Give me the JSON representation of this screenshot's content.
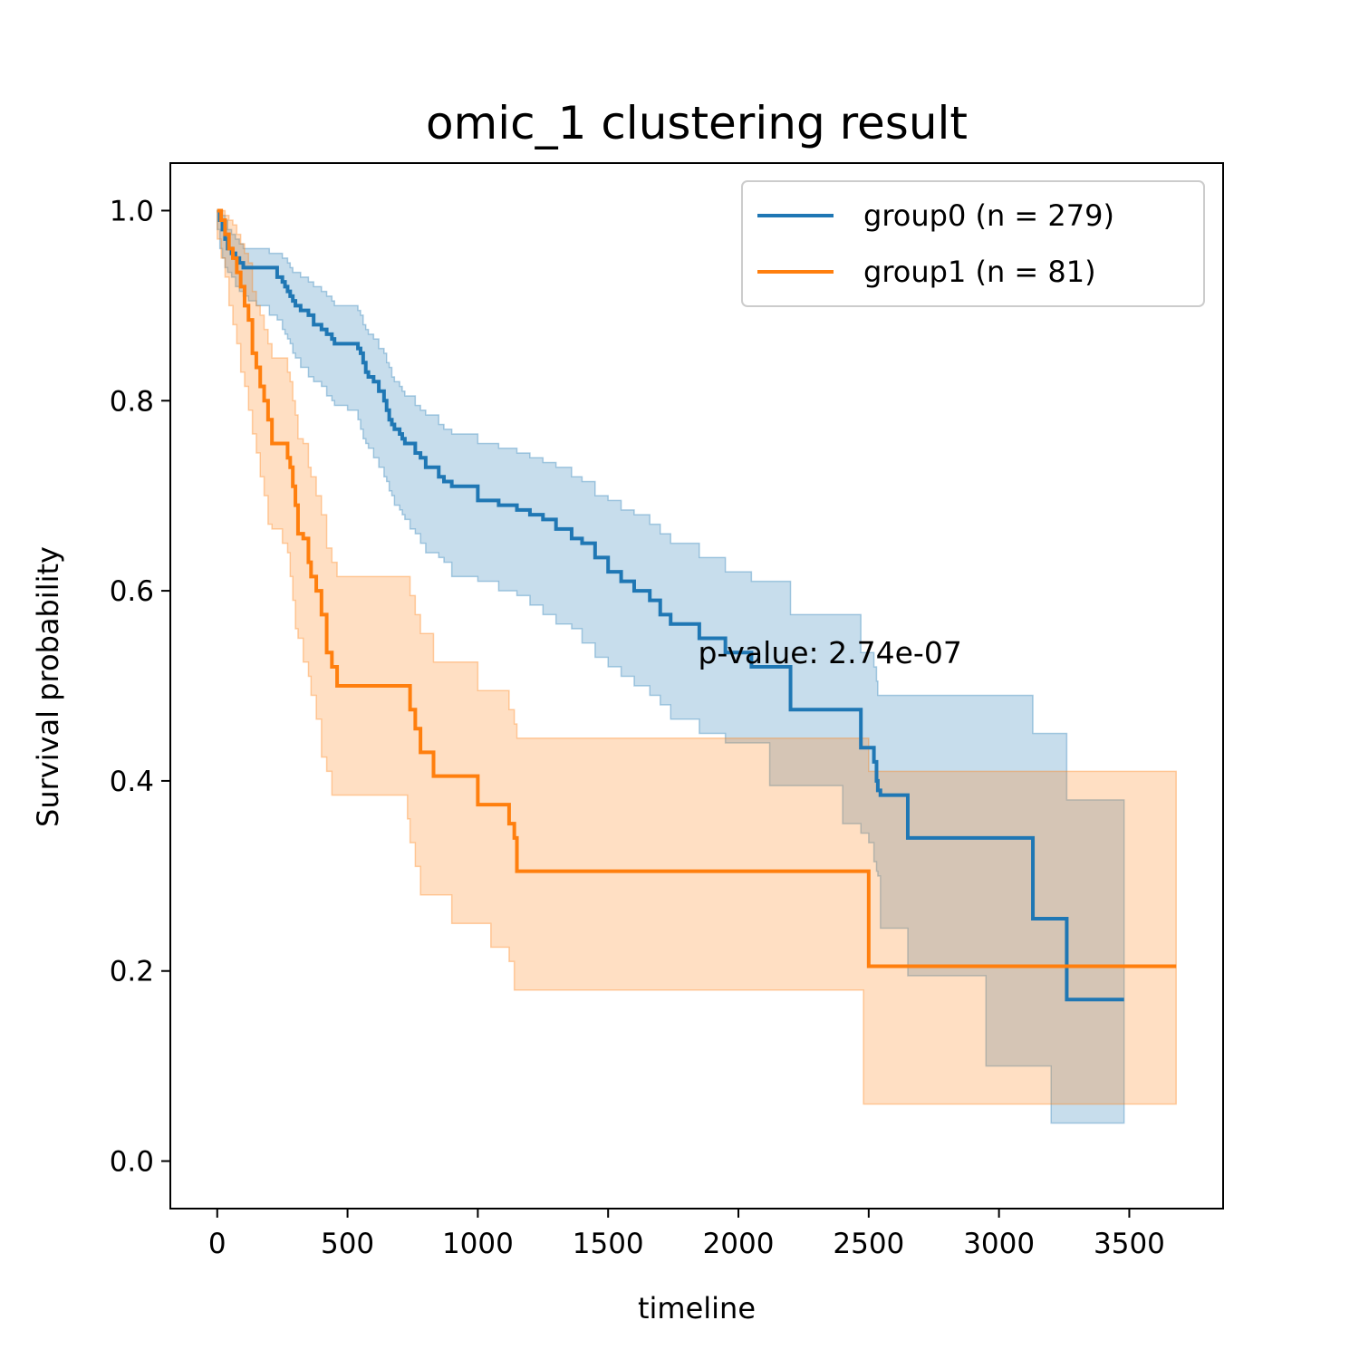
{
  "chart_data": {
    "type": "line",
    "title": "omic_1 clustering result",
    "xlabel": "timeline",
    "ylabel": "Survival probability",
    "xlim": [
      -180,
      3860
    ],
    "ylim": [
      -0.05,
      1.05
    ],
    "xticks": [
      0,
      500,
      1000,
      1500,
      2000,
      2500,
      3000,
      3500
    ],
    "yticks": [
      0.0,
      0.2,
      0.4,
      0.6,
      0.8,
      1.0
    ],
    "xtick_labels": [
      "0",
      "500",
      "1000",
      "1500",
      "2000",
      "2500",
      "3000",
      "3500"
    ],
    "ytick_labels": [
      "0.0",
      "0.2",
      "0.4",
      "0.6",
      "0.8",
      "1.0"
    ],
    "grid": false,
    "legend_position": "top-right",
    "annotation": {
      "text": "p-value: 2.74e-07",
      "x": 1845,
      "y": 0.52
    },
    "series": [
      {
        "name": "group0 (n = 279)",
        "color": "#1f77b4",
        "fill_color": "#1f77b4",
        "x": [
          0,
          10,
          20,
          30,
          40,
          55,
          70,
          85,
          100,
          120,
          150,
          200,
          230,
          250,
          260,
          270,
          280,
          290,
          300,
          320,
          350,
          370,
          400,
          420,
          440,
          450,
          500,
          540,
          550,
          560,
          570,
          580,
          600,
          620,
          640,
          650,
          660,
          670,
          680,
          700,
          710,
          720,
          740,
          760,
          780,
          800,
          850,
          870,
          900,
          1000,
          1080,
          1150,
          1200,
          1250,
          1300,
          1360,
          1400,
          1450,
          1500,
          1550,
          1600,
          1660,
          1700,
          1740,
          1850,
          1950,
          2050,
          2120,
          2200,
          2300,
          2400,
          2470,
          2500,
          2520,
          2530,
          2535,
          2545,
          2650,
          2800,
          2950,
          3130,
          3200,
          3260,
          3350,
          3480
        ],
        "y": [
          1.0,
          0.99,
          0.98,
          0.97,
          0.96,
          0.955,
          0.95,
          0.945,
          0.94,
          0.94,
          0.94,
          0.94,
          0.93,
          0.925,
          0.92,
          0.915,
          0.91,
          0.905,
          0.9,
          0.895,
          0.89,
          0.88,
          0.875,
          0.87,
          0.865,
          0.86,
          0.86,
          0.855,
          0.85,
          0.84,
          0.83,
          0.825,
          0.82,
          0.81,
          0.8,
          0.79,
          0.78,
          0.775,
          0.77,
          0.765,
          0.76,
          0.755,
          0.755,
          0.745,
          0.74,
          0.73,
          0.72,
          0.715,
          0.71,
          0.695,
          0.69,
          0.685,
          0.68,
          0.675,
          0.665,
          0.655,
          0.65,
          0.635,
          0.62,
          0.61,
          0.6,
          0.59,
          0.575,
          0.565,
          0.55,
          0.535,
          0.52,
          0.52,
          0.475,
          0.475,
          0.475,
          0.435,
          0.435,
          0.42,
          0.4,
          0.39,
          0.385,
          0.34,
          0.34,
          0.34,
          0.255,
          0.255,
          0.17,
          0.17,
          0.17
        ],
        "lower": [
          1.0,
          0.98,
          0.96,
          0.95,
          0.94,
          0.935,
          0.93,
          0.92,
          0.915,
          0.91,
          0.905,
          0.9,
          0.89,
          0.885,
          0.875,
          0.87,
          0.865,
          0.86,
          0.85,
          0.845,
          0.835,
          0.825,
          0.82,
          0.815,
          0.805,
          0.8,
          0.795,
          0.79,
          0.78,
          0.77,
          0.76,
          0.755,
          0.75,
          0.74,
          0.73,
          0.72,
          0.715,
          0.705,
          0.7,
          0.69,
          0.685,
          0.68,
          0.675,
          0.665,
          0.66,
          0.65,
          0.64,
          0.635,
          0.63,
          0.615,
          0.61,
          0.6,
          0.595,
          0.585,
          0.575,
          0.565,
          0.56,
          0.545,
          0.53,
          0.52,
          0.51,
          0.5,
          0.49,
          0.48,
          0.465,
          0.45,
          0.44,
          0.44,
          0.395,
          0.395,
          0.395,
          0.355,
          0.345,
          0.335,
          0.315,
          0.305,
          0.3,
          0.245,
          0.195,
          0.195,
          0.1,
          0.1,
          0.04,
          0.04,
          0.04
        ],
        "upper": [
          1.0,
          1.0,
          0.995,
          0.99,
          0.98,
          0.975,
          0.97,
          0.965,
          0.96,
          0.96,
          0.96,
          0.955,
          0.955,
          0.95,
          0.95,
          0.945,
          0.94,
          0.935,
          0.935,
          0.93,
          0.925,
          0.92,
          0.915,
          0.91,
          0.905,
          0.9,
          0.9,
          0.895,
          0.89,
          0.88,
          0.875,
          0.87,
          0.865,
          0.855,
          0.85,
          0.84,
          0.835,
          0.825,
          0.82,
          0.815,
          0.81,
          0.805,
          0.805,
          0.795,
          0.79,
          0.785,
          0.775,
          0.77,
          0.765,
          0.755,
          0.75,
          0.745,
          0.74,
          0.735,
          0.73,
          0.72,
          0.715,
          0.7,
          0.695,
          0.685,
          0.68,
          0.67,
          0.66,
          0.65,
          0.635,
          0.62,
          0.61,
          0.61,
          0.575,
          0.575,
          0.575,
          0.535,
          0.535,
          0.52,
          0.505,
          0.49,
          0.49,
          0.49,
          0.49,
          0.49,
          0.45,
          0.45,
          0.38,
          0.38,
          0.38
        ]
      },
      {
        "name": "group1 (n = 81)",
        "color": "#ff7f0e",
        "fill_color": "#ff7f0e",
        "x": [
          0,
          15,
          30,
          45,
          60,
          75,
          90,
          105,
          120,
          135,
          150,
          165,
          180,
          195,
          210,
          250,
          270,
          280,
          290,
          300,
          310,
          330,
          350,
          360,
          380,
          400,
          420,
          440,
          460,
          730,
          740,
          760,
          780,
          830,
          900,
          1000,
          1050,
          1120,
          1140,
          1150,
          1400,
          2000,
          2480,
          2500,
          3000,
          3680
        ],
        "y": [
          1.0,
          0.99,
          0.975,
          0.96,
          0.95,
          0.935,
          0.92,
          0.9,
          0.885,
          0.85,
          0.835,
          0.815,
          0.8,
          0.78,
          0.755,
          0.755,
          0.74,
          0.73,
          0.71,
          0.69,
          0.66,
          0.655,
          0.63,
          0.615,
          0.6,
          0.575,
          0.535,
          0.52,
          0.5,
          0.5,
          0.475,
          0.455,
          0.43,
          0.405,
          0.405,
          0.375,
          0.375,
          0.355,
          0.34,
          0.305,
          0.305,
          0.305,
          0.305,
          0.205,
          0.205,
          0.205
        ],
        "lower": [
          1.0,
          0.97,
          0.95,
          0.93,
          0.9,
          0.88,
          0.86,
          0.83,
          0.815,
          0.79,
          0.765,
          0.745,
          0.72,
          0.7,
          0.67,
          0.665,
          0.65,
          0.64,
          0.615,
          0.59,
          0.56,
          0.55,
          0.525,
          0.51,
          0.49,
          0.465,
          0.425,
          0.41,
          0.385,
          0.385,
          0.36,
          0.335,
          0.31,
          0.28,
          0.28,
          0.25,
          0.25,
          0.225,
          0.21,
          0.18,
          0.18,
          0.18,
          0.18,
          0.06,
          0.06,
          0.06
        ],
        "upper": [
          1.0,
          1.0,
          0.995,
          0.99,
          0.985,
          0.975,
          0.965,
          0.955,
          0.945,
          0.915,
          0.9,
          0.89,
          0.875,
          0.86,
          0.845,
          0.845,
          0.83,
          0.82,
          0.8,
          0.785,
          0.76,
          0.755,
          0.73,
          0.72,
          0.7,
          0.68,
          0.645,
          0.63,
          0.615,
          0.615,
          0.595,
          0.575,
          0.555,
          0.525,
          0.525,
          0.495,
          0.495,
          0.475,
          0.46,
          0.445,
          0.445,
          0.445,
          0.445,
          0.41,
          0.41,
          0.41
        ]
      }
    ]
  }
}
